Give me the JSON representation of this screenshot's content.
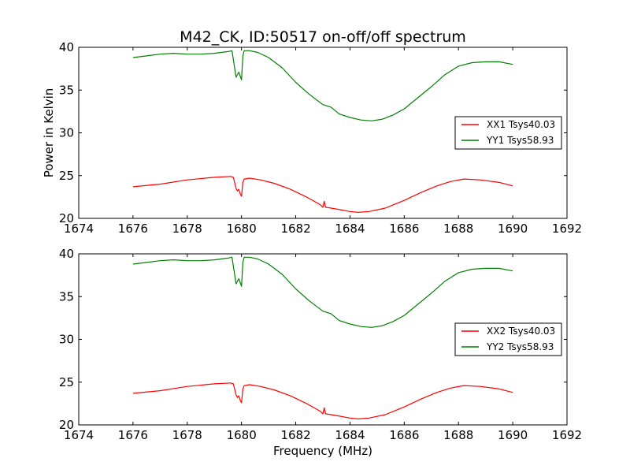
{
  "chart_data": {
    "title": "M42_CK, ID:50517 on-off/off spectrum",
    "ylabel": "Power in Kelvin",
    "xlabel": "Frequency (MHz)",
    "panels": [
      {
        "type": "line",
        "xlim": [
          1674,
          1692
        ],
        "ylim": [
          20,
          40
        ],
        "xticks": [
          "1674",
          "1676",
          "1678",
          "1680",
          "1682",
          "1684",
          "1686",
          "1688",
          "1690",
          "1692"
        ],
        "yticks": [
          "20",
          "25",
          "30",
          "35",
          "40"
        ],
        "legend_position": "right",
        "series": [
          {
            "name": "XX1 Tsys40.03",
            "color": "#ff0000",
            "x": [
              1676.0,
              1677.0,
              1678.0,
              1679.0,
              1679.6,
              1679.7,
              1679.8,
              1679.85,
              1679.9,
              1679.95,
              1680.0,
              1680.05,
              1680.1,
              1680.3,
              1680.7,
              1681.2,
              1681.8,
              1682.4,
              1682.9,
              1683.0,
              1683.05,
              1683.1,
              1683.5,
              1684.0,
              1684.3,
              1684.7,
              1685.3,
              1686.0,
              1686.6,
              1687.2,
              1687.7,
              1688.2,
              1688.8,
              1689.5,
              1690.0
            ],
            "values": [
              23.7,
              24.0,
              24.5,
              24.8,
              24.9,
              24.8,
              23.5,
              23.2,
              23.4,
              22.9,
              22.6,
              24.2,
              24.6,
              24.7,
              24.5,
              24.1,
              23.4,
              22.5,
              21.6,
              21.3,
              22.0,
              21.3,
              21.1,
              20.8,
              20.7,
              20.8,
              21.2,
              22.1,
              23.0,
              23.8,
              24.3,
              24.6,
              24.5,
              24.2,
              23.8
            ]
          },
          {
            "name": "YY1 Tsys58.93",
            "color": "#008000",
            "x": [
              1676.0,
              1676.5,
              1677.0,
              1677.5,
              1678.0,
              1678.5,
              1679.0,
              1679.5,
              1679.65,
              1679.75,
              1679.8,
              1679.9,
              1680.0,
              1680.05,
              1680.1,
              1680.3,
              1680.6,
              1681.0,
              1681.5,
              1682.0,
              1682.5,
              1683.0,
              1683.3,
              1683.6,
              1684.0,
              1684.4,
              1684.8,
              1685.2,
              1685.6,
              1686.0,
              1686.5,
              1687.0,
              1687.5,
              1688.0,
              1688.5,
              1689.0,
              1689.5,
              1690.0
            ],
            "values": [
              38.8,
              39.0,
              39.2,
              39.3,
              39.2,
              39.2,
              39.3,
              39.5,
              39.6,
              37.5,
              36.5,
              37.1,
              36.2,
              39.0,
              39.6,
              39.6,
              39.4,
              38.8,
              37.6,
              35.9,
              34.5,
              33.3,
              33.0,
              32.2,
              31.8,
              31.5,
              31.4,
              31.6,
              32.1,
              32.8,
              34.1,
              35.4,
              36.8,
              37.8,
              38.2,
              38.3,
              38.3,
              38.0
            ]
          }
        ]
      },
      {
        "type": "line",
        "xlim": [
          1674,
          1692
        ],
        "ylim": [
          20,
          40
        ],
        "xticks": [
          "1674",
          "1676",
          "1678",
          "1680",
          "1682",
          "1684",
          "1686",
          "1688",
          "1690",
          "1692"
        ],
        "yticks": [
          "20",
          "25",
          "30",
          "35",
          "40"
        ],
        "legend_position": "right",
        "series": [
          {
            "name": "XX2 Tsys40.03",
            "color": "#ff0000",
            "x": [
              1676.0,
              1677.0,
              1678.0,
              1679.0,
              1679.6,
              1679.7,
              1679.8,
              1679.85,
              1679.9,
              1679.95,
              1680.0,
              1680.05,
              1680.1,
              1680.3,
              1680.7,
              1681.2,
              1681.8,
              1682.4,
              1682.9,
              1683.0,
              1683.05,
              1683.1,
              1683.5,
              1684.0,
              1684.3,
              1684.7,
              1685.3,
              1686.0,
              1686.6,
              1687.2,
              1687.7,
              1688.2,
              1688.8,
              1689.5,
              1690.0
            ],
            "values": [
              23.7,
              24.0,
              24.5,
              24.8,
              24.9,
              24.8,
              23.5,
              23.2,
              23.4,
              22.9,
              22.6,
              24.2,
              24.6,
              24.7,
              24.5,
              24.1,
              23.4,
              22.5,
              21.6,
              21.3,
              22.0,
              21.3,
              21.1,
              20.8,
              20.7,
              20.8,
              21.2,
              22.1,
              23.0,
              23.8,
              24.3,
              24.6,
              24.5,
              24.2,
              23.8
            ]
          },
          {
            "name": "YY2 Tsys58.93",
            "color": "#008000",
            "x": [
              1676.0,
              1676.5,
              1677.0,
              1677.5,
              1678.0,
              1678.5,
              1679.0,
              1679.5,
              1679.65,
              1679.75,
              1679.8,
              1679.9,
              1680.0,
              1680.05,
              1680.1,
              1680.3,
              1680.6,
              1681.0,
              1681.5,
              1682.0,
              1682.5,
              1683.0,
              1683.3,
              1683.6,
              1684.0,
              1684.4,
              1684.8,
              1685.2,
              1685.6,
              1686.0,
              1686.5,
              1687.0,
              1687.5,
              1688.0,
              1688.5,
              1689.0,
              1689.5,
              1690.0
            ],
            "values": [
              38.8,
              39.0,
              39.2,
              39.3,
              39.2,
              39.2,
              39.3,
              39.5,
              39.6,
              37.5,
              36.5,
              37.1,
              36.2,
              39.0,
              39.6,
              39.6,
              39.4,
              38.8,
              37.6,
              35.9,
              34.5,
              33.3,
              33.0,
              32.2,
              31.8,
              31.5,
              31.4,
              31.6,
              32.1,
              32.8,
              34.1,
              35.4,
              36.8,
              37.8,
              38.2,
              38.3,
              38.3,
              38.0
            ]
          }
        ]
      }
    ]
  }
}
